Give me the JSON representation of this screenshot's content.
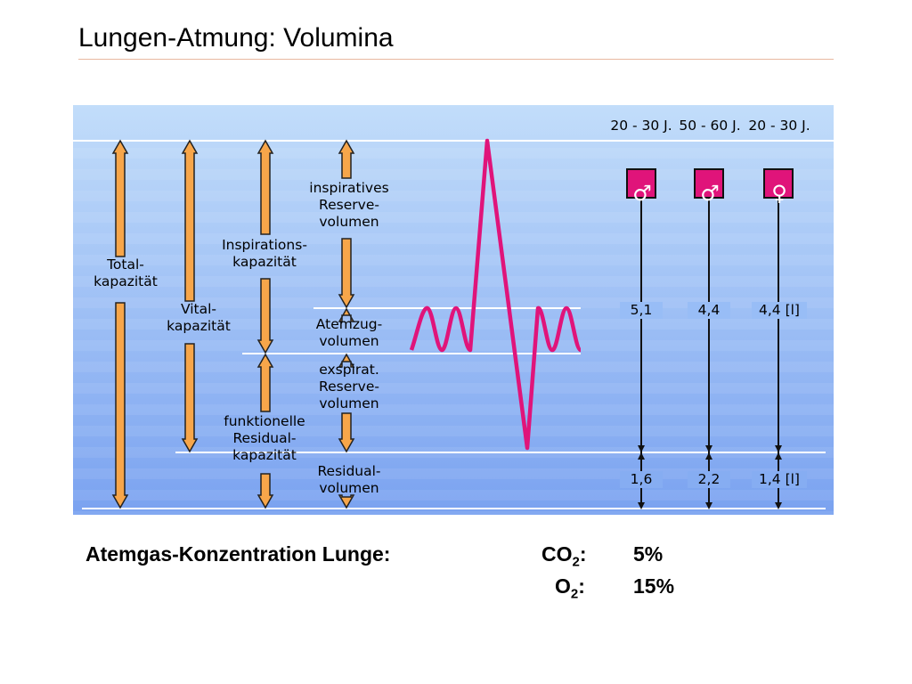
{
  "slide": {
    "title": "Lungen-Atmung: Volumina"
  },
  "diagram": {
    "columns": {
      "total": [
        "Total-",
        "kapazität"
      ],
      "vital": [
        "Vital-",
        "kapazität"
      ],
      "inspiration_capacity": [
        "Inspirations-",
        "kapazität"
      ],
      "functional_residual": [
        "funktionelle",
        "Residual-",
        "kapazität"
      ],
      "inspiratory_reserve": [
        "inspiratives",
        "Reserve-",
        "volumen"
      ],
      "tidal": [
        "Atemzug-",
        "volumen"
      ],
      "expiratory_reserve": [
        "exspirat.",
        "Reserve-",
        "volumen"
      ],
      "residual": [
        "Residual-",
        "volumen"
      ]
    },
    "groups": [
      {
        "age": "20 - 30 J.",
        "sex_symbol": "♂",
        "vital_capacity": "5,1",
        "residual_volume": "1,6"
      },
      {
        "age": "50 - 60 J.",
        "sex_symbol": "♂",
        "vital_capacity": "4,4",
        "residual_volume": "2,2"
      },
      {
        "age": "20 - 30 J.",
        "sex_symbol": "♀",
        "vital_capacity": "4,4 [l]",
        "residual_volume": "1,4 [l]"
      }
    ],
    "colors": {
      "arrow_fill": "#f7a64a",
      "wave": "#e0147a",
      "symbol_box": "#e0147a",
      "bg_top": "#c2ddfa",
      "bg_bottom": "#7aa2f0"
    }
  },
  "concentration": {
    "label": "Atemgas-Konzentration Lunge:",
    "rows": [
      {
        "gas": "CO",
        "sub": "2",
        "colon": ":",
        "value": "5%"
      },
      {
        "gas": "O",
        "sub": "2",
        "colon": ":",
        "value": "15%"
      }
    ]
  }
}
